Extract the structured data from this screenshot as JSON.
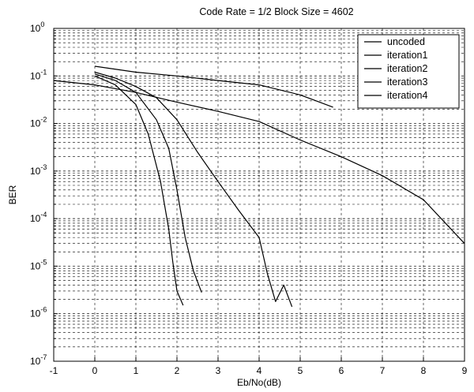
{
  "chart_data": {
    "type": "line",
    "title": "Code Rate = 1/2 Block Size = 4602",
    "xlabel": "Eb/No(dB)",
    "ylabel": "BER",
    "xlim": [
      -1,
      9
    ],
    "ylim": [
      1e-07,
      1
    ],
    "y_scale": "log",
    "grid": true,
    "legend_position": "top-right",
    "x_ticks": [
      "-1",
      "0",
      "1",
      "2",
      "3",
      "4",
      "5",
      "6",
      "7",
      "8",
      "9"
    ],
    "y_ticks": [
      {
        "base": "10",
        "exp": "0"
      },
      {
        "base": "10",
        "exp": "-1"
      },
      {
        "base": "10",
        "exp": "-2"
      },
      {
        "base": "10",
        "exp": "-3"
      },
      {
        "base": "10",
        "exp": "-4"
      },
      {
        "base": "10",
        "exp": "-5"
      },
      {
        "base": "10",
        "exp": "-6"
      },
      {
        "base": "10",
        "exp": "-7"
      }
    ],
    "series": [
      {
        "name": "uncoded",
        "x": [
          -1,
          0,
          1,
          2,
          3,
          4,
          5,
          6,
          7,
          8,
          9
        ],
        "y": [
          0.08,
          0.065,
          0.045,
          0.028,
          0.018,
          0.011,
          0.0045,
          0.002,
          0.0008,
          0.00025,
          3e-05
        ]
      },
      {
        "name": "iteration1",
        "x": [
          0,
          1,
          2,
          3,
          4,
          5,
          5.8
        ],
        "y": [
          0.16,
          0.12,
          0.1,
          0.08,
          0.065,
          0.04,
          0.022
        ]
      },
      {
        "name": "iteration2",
        "x": [
          0,
          0.5,
          1,
          1.5,
          2,
          2.5,
          3,
          3.5,
          4,
          4.2,
          4.4,
          4.6,
          4.8
        ],
        "y": [
          0.12,
          0.09,
          0.06,
          0.035,
          0.012,
          0.0025,
          0.0006,
          0.00015,
          4e-05,
          7e-06,
          1.8e-06,
          4e-06,
          1.4e-06
        ]
      },
      {
        "name": "iteration3",
        "x": [
          0,
          0.5,
          1,
          1.5,
          1.8,
          2,
          2.2,
          2.4,
          2.6
        ],
        "y": [
          0.11,
          0.08,
          0.045,
          0.012,
          0.003,
          0.0004,
          4e-05,
          8e-06,
          2.8e-06
        ]
      },
      {
        "name": "iteration4",
        "x": [
          0,
          0.5,
          1,
          1.3,
          1.6,
          1.8,
          1.9,
          2,
          2.15
        ],
        "y": [
          0.1,
          0.065,
          0.025,
          0.006,
          0.0006,
          6e-05,
          1.2e-05,
          3e-06,
          1.5e-06
        ]
      }
    ]
  }
}
